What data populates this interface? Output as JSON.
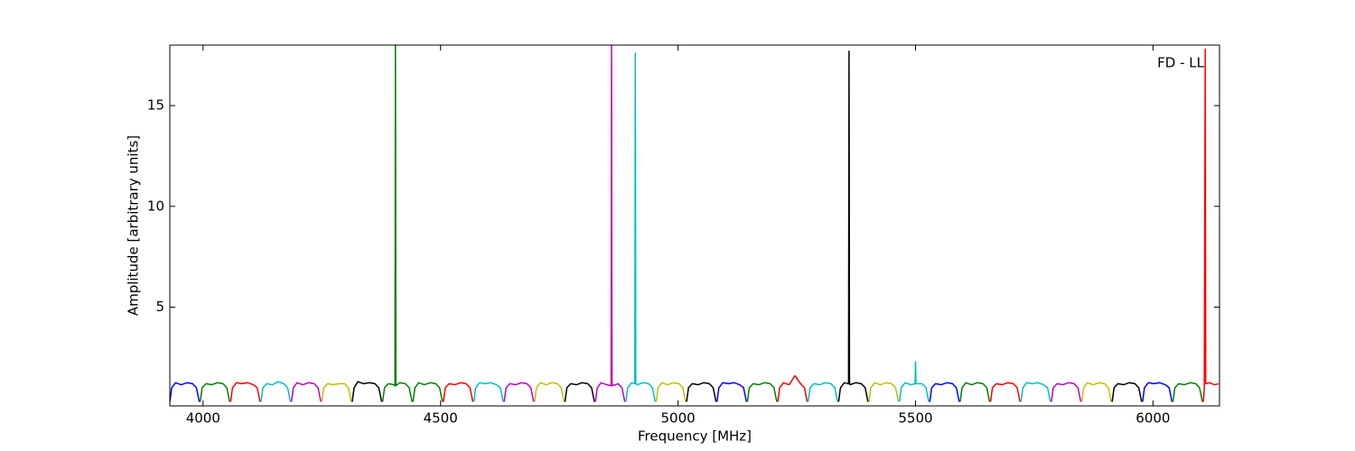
{
  "chart_data": {
    "type": "line",
    "x_label": "Frequency [MHz]",
    "y_label": "Amplitude [arbitrary units]",
    "annotation": "FD - LL",
    "xlim": [
      3930,
      6140
    ],
    "ylim": [
      0.1,
      18
    ],
    "xticks": [
      4000,
      4500,
      5000,
      5500,
      6000
    ],
    "yticks": [
      5,
      10,
      15
    ],
    "series": [
      {
        "color": "#0000ff",
        "x": [
          3930,
          3934,
          3942,
          3954,
          3966,
          3978,
          3986,
          3992
        ],
        "values": [
          0.3,
          1.0,
          1.25,
          1.15,
          1.25,
          1.2,
          1.0,
          0.3
        ]
      },
      {
        "color": "#008000",
        "x": [
          3994,
          3998,
          4006,
          4018,
          4030,
          4042,
          4050,
          4056
        ],
        "values": [
          0.3,
          1.0,
          1.2,
          1.15,
          1.25,
          1.2,
          1.0,
          0.3
        ]
      },
      {
        "color": "#ff0000",
        "x": [
          4058,
          4062,
          4070,
          4082,
          4094,
          4106,
          4114,
          4120
        ],
        "values": [
          0.3,
          1.0,
          1.25,
          1.2,
          1.25,
          1.15,
          1.0,
          0.3
        ]
      },
      {
        "color": "#00bfbf",
        "x": [
          4122,
          4126,
          4134,
          4146,
          4158,
          4170,
          4178,
          4184
        ],
        "values": [
          0.3,
          1.0,
          1.2,
          1.15,
          1.3,
          1.2,
          1.0,
          0.3
        ]
      },
      {
        "color": "#bf00bf",
        "x": [
          4186,
          4190,
          4198,
          4210,
          4222,
          4234,
          4242,
          4248
        ],
        "values": [
          0.3,
          1.0,
          1.25,
          1.15,
          1.25,
          1.2,
          1.0,
          0.3
        ]
      },
      {
        "color": "#bfbf00",
        "x": [
          4250,
          4254,
          4262,
          4274,
          4286,
          4298,
          4306,
          4312
        ],
        "values": [
          0.3,
          1.0,
          1.2,
          1.15,
          1.2,
          1.2,
          1.0,
          0.3
        ]
      },
      {
        "color": "#000000",
        "x": [
          4314,
          4318,
          4326,
          4338,
          4350,
          4362,
          4370,
          4376
        ],
        "values": [
          0.3,
          1.0,
          1.3,
          1.2,
          1.25,
          1.2,
          1.0,
          0.3
        ]
      },
      {
        "color": "#008000",
        "x": [
          4378,
          4382,
          4390,
          4402,
          4404,
          4405,
          4406,
          4414,
          4426,
          4434,
          4440
        ],
        "values": [
          0.3,
          1.0,
          1.2,
          1.15,
          1.1,
          18,
          1.1,
          1.25,
          1.2,
          1.0,
          0.3
        ]
      },
      {
        "color": "#008000",
        "x": [
          4442,
          4446,
          4454,
          4466,
          4478,
          4490,
          4498,
          4504
        ],
        "values": [
          0.3,
          1.0,
          1.25,
          1.15,
          1.25,
          1.2,
          1.0,
          0.3
        ]
      },
      {
        "color": "#ff0000",
        "x": [
          4506,
          4510,
          4518,
          4530,
          4542,
          4554,
          4562,
          4568
        ],
        "values": [
          0.3,
          1.0,
          1.2,
          1.15,
          1.25,
          1.2,
          1.0,
          0.3
        ]
      },
      {
        "color": "#00bfbf",
        "x": [
          4570,
          4574,
          4582,
          4594,
          4606,
          4618,
          4626,
          4632
        ],
        "values": [
          0.3,
          1.0,
          1.25,
          1.2,
          1.25,
          1.15,
          1.0,
          0.3
        ]
      },
      {
        "color": "#bf00bf",
        "x": [
          4634,
          4638,
          4646,
          4658,
          4670,
          4682,
          4690,
          4696
        ],
        "values": [
          0.3,
          1.0,
          1.2,
          1.15,
          1.25,
          1.2,
          1.0,
          0.3
        ]
      },
      {
        "color": "#bfbf00",
        "x": [
          4698,
          4702,
          4710,
          4722,
          4734,
          4746,
          4754,
          4760
        ],
        "values": [
          0.3,
          1.0,
          1.25,
          1.15,
          1.25,
          1.2,
          1.0,
          0.3
        ]
      },
      {
        "color": "#000000",
        "x": [
          4762,
          4766,
          4774,
          4786,
          4798,
          4810,
          4818,
          4824
        ],
        "values": [
          0.3,
          1.0,
          1.2,
          1.15,
          1.25,
          1.2,
          1.0,
          0.3
        ]
      },
      {
        "color": "#bf00bf",
        "x": [
          4826,
          4830,
          4838,
          4850,
          4859,
          4860,
          4861,
          4874,
          4882,
          4888
        ],
        "values": [
          0.3,
          1.0,
          1.25,
          1.15,
          1.1,
          18,
          1.1,
          1.2,
          1.0,
          0.3
        ]
      },
      {
        "color": "#00bfbf",
        "x": [
          4890,
          4894,
          4902,
          4909,
          4910,
          4911,
          4914,
          4926,
          4938,
          4946,
          4952
        ],
        "values": [
          0.3,
          1.0,
          1.25,
          1.2,
          17.6,
          1.2,
          1.15,
          1.25,
          1.2,
          1.0,
          0.3
        ]
      },
      {
        "color": "#bfbf00",
        "x": [
          4954,
          4958,
          4966,
          4978,
          4990,
          5002,
          5010,
          5016
        ],
        "values": [
          0.3,
          1.0,
          1.25,
          1.15,
          1.25,
          1.2,
          1.0,
          0.3
        ]
      },
      {
        "color": "#000000",
        "x": [
          5018,
          5022,
          5030,
          5042,
          5054,
          5066,
          5074,
          5080
        ],
        "values": [
          0.3,
          1.0,
          1.2,
          1.15,
          1.25,
          1.2,
          1.0,
          0.3
        ]
      },
      {
        "color": "#0000ff",
        "x": [
          5082,
          5086,
          5094,
          5106,
          5118,
          5130,
          5138,
          5144
        ],
        "values": [
          0.3,
          1.0,
          1.25,
          1.2,
          1.25,
          1.15,
          1.0,
          0.3
        ]
      },
      {
        "color": "#008000",
        "x": [
          5146,
          5150,
          5158,
          5170,
          5182,
          5194,
          5202,
          5208
        ],
        "values": [
          0.3,
          1.0,
          1.2,
          1.15,
          1.25,
          1.2,
          1.0,
          0.3
        ]
      },
      {
        "color": "#ff0000",
        "x": [
          5210,
          5214,
          5222,
          5234,
          5246,
          5258,
          5266,
          5272
        ],
        "values": [
          0.3,
          1.0,
          1.25,
          1.15,
          1.6,
          1.2,
          1.0,
          0.3
        ]
      },
      {
        "color": "#00bfbf",
        "x": [
          5274,
          5278,
          5286,
          5298,
          5310,
          5322,
          5330,
          5336
        ],
        "values": [
          0.3,
          1.0,
          1.2,
          1.15,
          1.25,
          1.2,
          1.0,
          0.3
        ]
      },
      {
        "color": "#000000",
        "x": [
          5338,
          5342,
          5350,
          5359,
          5360,
          5361,
          5362,
          5374,
          5386,
          5394,
          5400
        ],
        "values": [
          0.3,
          1.0,
          1.25,
          1.2,
          17.7,
          1.3,
          1.15,
          1.25,
          1.2,
          1.0,
          0.3
        ]
      },
      {
        "color": "#bfbf00",
        "x": [
          5402,
          5406,
          5414,
          5426,
          5438,
          5450,
          5458,
          5464
        ],
        "values": [
          0.3,
          1.0,
          1.25,
          1.15,
          1.25,
          1.2,
          1.0,
          0.3
        ]
      },
      {
        "color": "#00bfbf",
        "x": [
          5466,
          5470,
          5478,
          5490,
          5499,
          5500,
          5501,
          5514,
          5522,
          5528
        ],
        "values": [
          0.3,
          1.0,
          1.25,
          1.15,
          1.2,
          2.3,
          1.2,
          1.2,
          1.0,
          0.3
        ]
      },
      {
        "color": "#0000ff",
        "x": [
          5530,
          5534,
          5542,
          5554,
          5566,
          5578,
          5586,
          5592
        ],
        "values": [
          0.3,
          1.0,
          1.2,
          1.15,
          1.25,
          1.2,
          1.0,
          0.3
        ]
      },
      {
        "color": "#008000",
        "x": [
          5594,
          5598,
          5606,
          5618,
          5630,
          5642,
          5650,
          5656
        ],
        "values": [
          0.3,
          1.0,
          1.25,
          1.15,
          1.25,
          1.2,
          1.0,
          0.3
        ]
      },
      {
        "color": "#ff0000",
        "x": [
          5658,
          5662,
          5670,
          5682,
          5694,
          5706,
          5714,
          5720
        ],
        "values": [
          0.3,
          1.0,
          1.2,
          1.15,
          1.25,
          1.2,
          1.0,
          0.3
        ]
      },
      {
        "color": "#00bfbf",
        "x": [
          5722,
          5726,
          5734,
          5746,
          5758,
          5770,
          5778,
          5784
        ],
        "values": [
          0.3,
          1.0,
          1.25,
          1.2,
          1.25,
          1.15,
          1.0,
          0.3
        ]
      },
      {
        "color": "#bf00bf",
        "x": [
          5786,
          5790,
          5798,
          5810,
          5822,
          5834,
          5842,
          5848
        ],
        "values": [
          0.3,
          1.0,
          1.2,
          1.15,
          1.25,
          1.2,
          1.0,
          0.3
        ]
      },
      {
        "color": "#bfbf00",
        "x": [
          5850,
          5854,
          5862,
          5874,
          5886,
          5898,
          5906,
          5912
        ],
        "values": [
          0.3,
          1.0,
          1.25,
          1.15,
          1.25,
          1.2,
          1.0,
          0.3
        ]
      },
      {
        "color": "#000000",
        "x": [
          5914,
          5918,
          5926,
          5938,
          5950,
          5962,
          5970,
          5976
        ],
        "values": [
          0.3,
          1.0,
          1.2,
          1.15,
          1.25,
          1.2,
          1.0,
          0.3
        ]
      },
      {
        "color": "#0000ff",
        "x": [
          5978,
          5982,
          5990,
          6002,
          6014,
          6026,
          6034,
          6040
        ],
        "values": [
          0.3,
          1.0,
          1.25,
          1.2,
          1.25,
          1.15,
          1.0,
          0.3
        ]
      },
      {
        "color": "#008000",
        "x": [
          6042,
          6046,
          6054,
          6066,
          6078,
          6090,
          6098,
          6104
        ],
        "values": [
          0.3,
          1.0,
          1.2,
          1.15,
          1.25,
          1.2,
          1.0,
          0.3
        ]
      },
      {
        "color": "#ff0000",
        "x": [
          6106,
          6108,
          6110,
          6111,
          6118,
          6130,
          6138
        ],
        "values": [
          0.3,
          1.0,
          17.8,
          1.2,
          1.25,
          1.15,
          1.2
        ]
      }
    ]
  }
}
